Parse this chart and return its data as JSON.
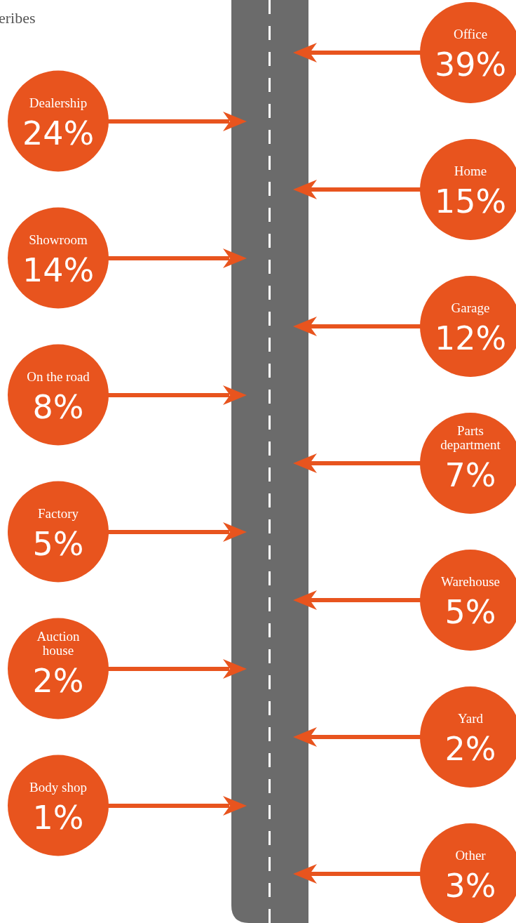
{
  "chart_data": {
    "type": "other",
    "categories": [
      "Office",
      "Dealership",
      "Home",
      "Showroom",
      "Garage",
      "On the road",
      "Parts\ndepartment",
      "Factory",
      "Warehouse",
      "Auction\nhouse",
      "Yard",
      "Body shop",
      "Other"
    ],
    "values": [
      39,
      24,
      15,
      14,
      12,
      8,
      7,
      5,
      5,
      2,
      2,
      1,
      3
    ],
    "value_labels": [
      "39%",
      "24%",
      "15%",
      "14%",
      "12%",
      "8%",
      "7%",
      "5%",
      "5%",
      "2%",
      "2%",
      "1%",
      "3%"
    ],
    "color": "#e8541e",
    "annotations": [
      {
        "text": "eribes"
      }
    ]
  }
}
